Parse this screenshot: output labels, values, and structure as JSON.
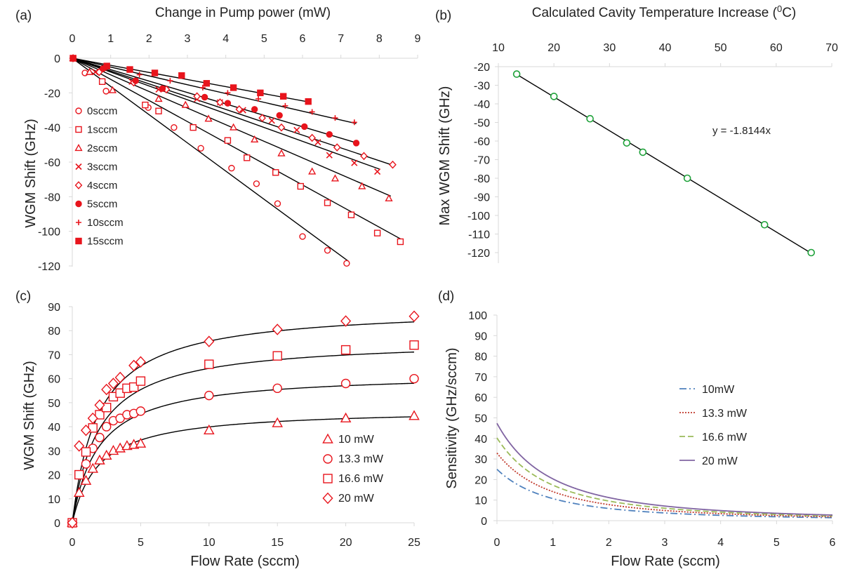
{
  "colors": {
    "axis": "#d9d9d9",
    "text": "#222222",
    "fit": "#000000",
    "red": "#e8141c",
    "green": "#1fa23a",
    "blue": "#4f81bd",
    "darkred": "#c0392b",
    "olive": "#9bbb59",
    "purple": "#8064a2"
  },
  "chart_data": [
    {
      "panel_label": "(a)",
      "type": "scatter",
      "title": "",
      "xlabel": "Change in Pump power (mW)",
      "ylabel": "WGM Shift (GHz)",
      "xlim": [
        0,
        9
      ],
      "ylim": [
        -120,
        0
      ],
      "xticks": [
        "0",
        "1",
        "2",
        "3",
        "4",
        "5",
        "6",
        "7",
        "8",
        "9"
      ],
      "yticks": [
        "0",
        "-20",
        "-40",
        "-60",
        "-80",
        "-100",
        "-120"
      ],
      "x_axis_position": "top",
      "legend_position": "left",
      "series": [
        {
          "name": "0sccm",
          "marker": "circle-open",
          "slope": -16.3,
          "points": [
            [
              0.02,
              0
            ],
            [
              0.33,
              -8.5
            ],
            [
              0.88,
              -19
            ],
            [
              1.98,
              -28.5
            ],
            [
              2.65,
              -40
            ],
            [
              3.35,
              -52
            ],
            [
              4.15,
              -63.5
            ],
            [
              4.8,
              -72.5
            ],
            [
              5.35,
              -84
            ],
            [
              6,
              -103
            ],
            [
              6.65,
              -111
            ],
            [
              7.15,
              -118.5
            ]
          ]
        },
        {
          "name": "1sccm",
          "marker": "square-open",
          "slope": -12.2,
          "points": [
            [
              0.02,
              0
            ],
            [
              0.78,
              -13.5
            ],
            [
              1.9,
              -27
            ],
            [
              2.25,
              -30.5
            ],
            [
              3.15,
              -40
            ],
            [
              4.05,
              -47.5
            ],
            [
              4.55,
              -57.5
            ],
            [
              5.3,
              -66
            ],
            [
              5.95,
              -74
            ],
            [
              6.65,
              -83.5
            ],
            [
              7.27,
              -90.5
            ],
            [
              7.95,
              -101
            ],
            [
              8.55,
              -106
            ]
          ]
        },
        {
          "name": "2sccm",
          "marker": "triangle-open",
          "slope": -9.6,
          "points": [
            [
              0.02,
              0
            ],
            [
              0.45,
              -8
            ],
            [
              1.05,
              -18.5
            ],
            [
              2.25,
              -23.5
            ],
            [
              2.95,
              -27
            ],
            [
              3.55,
              -35
            ],
            [
              4.2,
              -40
            ],
            [
              4.75,
              -47
            ],
            [
              5.45,
              -55
            ],
            [
              6.25,
              -65.5
            ],
            [
              6.85,
              -69.5
            ],
            [
              7.55,
              -74
            ],
            [
              8.25,
              -81
            ]
          ]
        },
        {
          "name": "3sccm",
          "marker": "x",
          "slope": -8.0,
          "points": [
            [
              0.02,
              0
            ],
            [
              0.6,
              -8
            ],
            [
              1.55,
              -13.5
            ],
            [
              2.25,
              -18
            ],
            [
              3.25,
              -23.5
            ],
            [
              3.85,
              -25.5
            ],
            [
              4.45,
              -30
            ],
            [
              5.2,
              -36
            ],
            [
              5.85,
              -41.5
            ],
            [
              6.4,
              -48.5
            ],
            [
              6.7,
              -56
            ],
            [
              7.35,
              -60.5
            ],
            [
              7.95,
              -65.5
            ]
          ]
        },
        {
          "name": "4sccm",
          "marker": "diamond-open",
          "slope": -7.4,
          "points": [
            [
              0.02,
              0
            ],
            [
              0.7,
              -8
            ],
            [
              1.6,
              -14
            ],
            [
              2.45,
              -18
            ],
            [
              3.25,
              -22
            ],
            [
              3.85,
              -25.5
            ],
            [
              4.35,
              -29.5
            ],
            [
              4.95,
              -34.5
            ],
            [
              5.45,
              -40
            ],
            [
              6.25,
              -46
            ],
            [
              6.9,
              -51.5
            ],
            [
              7.6,
              -56.5
            ],
            [
              8.35,
              -61.5
            ]
          ]
        },
        {
          "name": "5sccm",
          "marker": "circle-filled",
          "slope": -6.6,
          "points": [
            [
              0.02,
              0
            ],
            [
              0.8,
              -6
            ],
            [
              1.65,
              -13
            ],
            [
              2.35,
              -17.5
            ],
            [
              3.45,
              -22.5
            ],
            [
              4.05,
              -26
            ],
            [
              4.75,
              -29.5
            ],
            [
              5.4,
              -33
            ],
            [
              6.05,
              -39.5
            ],
            [
              6.7,
              -44
            ],
            [
              7.4,
              -49
            ]
          ]
        },
        {
          "name": "10sccm",
          "marker": "plus",
          "slope": -5.1,
          "points": [
            [
              0.02,
              0
            ],
            [
              0.9,
              -5.5
            ],
            [
              1.75,
              -9.5
            ],
            [
              2.55,
              -13
            ],
            [
              3.4,
              -17
            ],
            [
              4.05,
              -20
            ],
            [
              4.85,
              -23.5
            ],
            [
              5.55,
              -27.5
            ],
            [
              6.25,
              -31
            ],
            [
              6.85,
              -34.5
            ],
            [
              7.35,
              -37
            ]
          ]
        },
        {
          "name": "15sccm",
          "marker": "square-filled",
          "slope": -4.1,
          "points": [
            [
              0.02,
              0
            ],
            [
              0.9,
              -4.5
            ],
            [
              1.5,
              -6.5
            ],
            [
              2.15,
              -8.5
            ],
            [
              2.85,
              -10
            ],
            [
              3.5,
              -14.5
            ],
            [
              4.2,
              -17
            ],
            [
              4.9,
              -20
            ],
            [
              5.5,
              -22
            ],
            [
              6.15,
              -25
            ]
          ]
        }
      ]
    },
    {
      "panel_label": "(b)",
      "type": "scatter",
      "title": "",
      "xlabel": "Calculated Cavity Temperature Increase (",
      "xlabel_sup": "0",
      "xlabel_suffix": "C)",
      "ylabel": "Max WGM Shift (GHz)",
      "xlim": [
        10,
        70
      ],
      "ylim": [
        -120,
        -20
      ],
      "xticks": [
        "10",
        "20",
        "30",
        "40",
        "50",
        "60",
        "70"
      ],
      "yticks": [
        "-20",
        "-30",
        "-40",
        "-50",
        "-60",
        "-70",
        "-80",
        "-90",
        "-100",
        "-110",
        "-120"
      ],
      "x_axis_position": "top",
      "annotation": "y = -1.8144x",
      "fit_slope": -1.8144,
      "points": [
        [
          13.3,
          -24
        ],
        [
          20,
          -36
        ],
        [
          26.5,
          -48
        ],
        [
          33.1,
          -61
        ],
        [
          36,
          -66
        ],
        [
          44,
          -80
        ],
        [
          57.9,
          -105
        ],
        [
          66.3,
          -120
        ]
      ]
    },
    {
      "panel_label": "(c)",
      "type": "scatter",
      "title": "",
      "xlabel": "Flow Rate (sccm)",
      "ylabel": "WGM Shift (GHz)",
      "xlim": [
        0,
        25
      ],
      "ylim": [
        0,
        90
      ],
      "xticks": [
        "0",
        "5",
        "10",
        "15",
        "20",
        "25"
      ],
      "yticks": [
        "0",
        "10",
        "20",
        "30",
        "40",
        "50",
        "60",
        "70",
        "80",
        "90"
      ],
      "legend_position": "bottom-right",
      "series": [
        {
          "name": "10 mW",
          "marker": "triangle-open",
          "fit_a": 47.5,
          "fit_k": 1.9,
          "points": [
            [
              0,
              0
            ],
            [
              0.5,
              12.5
            ],
            [
              1,
              17.5
            ],
            [
              1.5,
              22.5
            ],
            [
              2,
              26
            ],
            [
              2.5,
              28
            ],
            [
              3,
              30
            ],
            [
              3.5,
              31
            ],
            [
              4,
              32
            ],
            [
              4.5,
              32.5
            ],
            [
              5,
              33
            ],
            [
              10,
              38.5
            ],
            [
              15,
              41.5
            ],
            [
              20,
              43.5
            ],
            [
              25,
              44.5
            ]
          ]
        },
        {
          "name": "13.3 mW",
          "marker": "circle-open",
          "fit_a": 62.5,
          "fit_k": 1.9,
          "points": [
            [
              0,
              0
            ],
            [
              0.5,
              20
            ],
            [
              1,
              24.5
            ],
            [
              1.5,
              31
            ],
            [
              2,
              35.5
            ],
            [
              2.5,
              40
            ],
            [
              3,
              42.5
            ],
            [
              3.5,
              43.5
            ],
            [
              4,
              45
            ],
            [
              4.5,
              45.5
            ],
            [
              5,
              46.5
            ],
            [
              10,
              53
            ],
            [
              15,
              56
            ],
            [
              20,
              58
            ],
            [
              25,
              60
            ]
          ]
        },
        {
          "name": "16.6 mW",
          "marker": "square-open",
          "fit_a": 76.5,
          "fit_k": 1.9,
          "points": [
            [
              0,
              0
            ],
            [
              0.5,
              20
            ],
            [
              1,
              29.5
            ],
            [
              1.5,
              39.5
            ],
            [
              2,
              45
            ],
            [
              2.5,
              48
            ],
            [
              3,
              52.5
            ],
            [
              3.5,
              54
            ],
            [
              4,
              56
            ],
            [
              4.5,
              56.5
            ],
            [
              5,
              59
            ],
            [
              10,
              66
            ],
            [
              15,
              69.5
            ],
            [
              20,
              72
            ],
            [
              25,
              74
            ]
          ]
        },
        {
          "name": "20 mW",
          "marker": "diamond-open",
          "fit_a": 90,
          "fit_k": 1.9,
          "points": [
            [
              0,
              0
            ],
            [
              0.5,
              32
            ],
            [
              1,
              38.5
            ],
            [
              1.5,
              43.5
            ],
            [
              2,
              49
            ],
            [
              2.5,
              55.5
            ],
            [
              3,
              58
            ],
            [
              3.5,
              60.5
            ],
            [
              4.5,
              65.5
            ],
            [
              5,
              67
            ],
            [
              10,
              75.5
            ],
            [
              15,
              80.5
            ],
            [
              20,
              84
            ],
            [
              25,
              86
            ]
          ]
        }
      ]
    },
    {
      "panel_label": "(d)",
      "type": "line",
      "title": "",
      "xlabel": "Flow Rate (sccm)",
      "ylabel": "Sensitivity (GHz/sccm)",
      "xlim": [
        0,
        6
      ],
      "ylim": [
        0,
        100
      ],
      "xticks": [
        "0",
        "1",
        "2",
        "3",
        "4",
        "5",
        "6"
      ],
      "yticks": [
        "0",
        "10",
        "20",
        "30",
        "40",
        "50",
        "60",
        "70",
        "80",
        "90",
        "100"
      ],
      "legend_position": "right",
      "series": [
        {
          "name": "10mW",
          "style": "dash-dot",
          "color": "#4f81bd",
          "fit_a": 47.5,
          "fit_k": 1.9
        },
        {
          "name": "13.3 mW",
          "style": "dotted",
          "color": "#c0392b",
          "fit_a": 62.5,
          "fit_k": 1.9
        },
        {
          "name": "16.6 mW",
          "style": "dashed",
          "color": "#9bbb59",
          "fit_a": 76.5,
          "fit_k": 1.9
        },
        {
          "name": "20 mW",
          "style": "solid",
          "color": "#8064a2",
          "fit_a": 90,
          "fit_k": 1.9
        }
      ]
    }
  ]
}
